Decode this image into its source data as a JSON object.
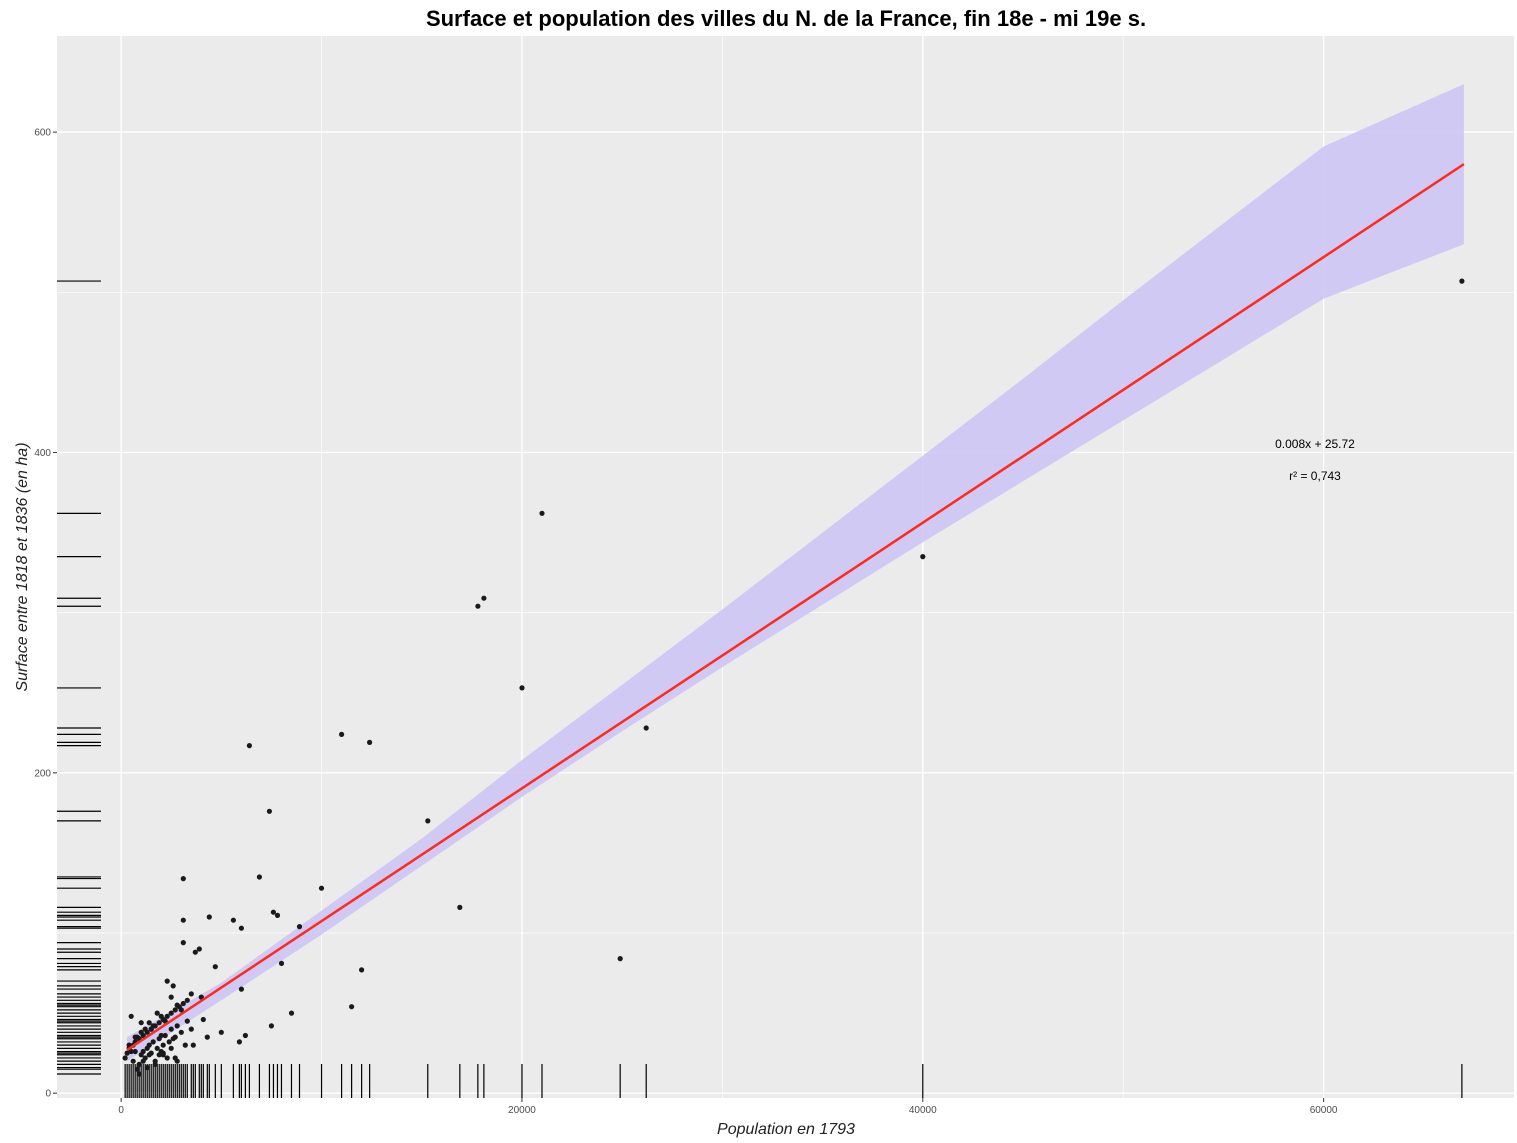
{
  "chart_data": {
    "type": "scatter",
    "title": "Surface et population des villes du N. de la France, fin 18e - mi 19e s.",
    "xlabel": "Population en 1793",
    "ylabel": "Surface entre 1818 et 1836 (en ha)",
    "xlim": [
      -3200,
      69500
    ],
    "ylim": [
      -3,
      660
    ],
    "x_ticks": [
      0,
      20000,
      40000,
      60000
    ],
    "x_tick_labels": [
      "0",
      "20000",
      "40000",
      "60000"
    ],
    "y_ticks": [
      0,
      200,
      400,
      600
    ],
    "y_tick_labels": [
      "0",
      "200",
      "400",
      "600"
    ],
    "grid": true,
    "background": "#ebebeb",
    "colors": {
      "points": "#1a1a1a",
      "fit_line": "#ff2a1a",
      "confidence_band": "#cdc5f5",
      "rug": "#000000",
      "grid": "#ffffff"
    },
    "regression": {
      "equation_label": "0.008x + 25.72",
      "r2_label": "r² = 0,743",
      "line": {
        "x": [
          300,
          67000
        ],
        "y": [
          27,
          580
        ]
      },
      "band_x": [
        300,
        5000,
        10000,
        15000,
        20000,
        25000,
        30000,
        35000,
        40000,
        45000,
        50000,
        55000,
        60000,
        67000
      ],
      "band_lower": [
        20,
        58,
        99,
        142,
        185,
        226,
        266,
        305,
        344,
        382,
        420,
        458,
        496,
        530
      ],
      "band_upper": [
        35,
        69,
        114,
        159,
        208,
        255,
        302,
        350,
        398,
        446,
        495,
        543,
        591,
        630
      ]
    },
    "series": [
      {
        "x": [
          66900,
          40000,
          21000,
          18100,
          17800,
          20000,
          26200,
          24900,
          16900,
          15300,
          6400,
          11000,
          12400,
          7400,
          10000,
          6900,
          3100,
          7800,
          7600,
          8900,
          4400,
          6000,
          5600,
          3100,
          3900,
          3700,
          4700,
          3100,
          12000,
          8000,
          6000,
          2300,
          4000,
          3500,
          2600,
          11500,
          8500,
          7500,
          5000,
          6200,
          5900,
          3300,
          4100,
          3000,
          2800,
          2500,
          2200,
          2000,
          1800,
          1600,
          1400,
          1200,
          1000,
          800,
          600,
          400,
          300,
          200,
          500,
          700,
          900,
          1100,
          1300,
          1500,
          1700,
          1900,
          2100,
          2300,
          2500,
          2700,
          2900,
          3100,
          3300,
          3500,
          600,
          900,
          1200,
          1500,
          1800,
          2100,
          2400,
          2700,
          3000,
          400,
          700,
          1000,
          1300,
          1600,
          1900,
          2200,
          2500,
          2800,
          800,
          1100,
          1400,
          1700,
          2000,
          2300,
          900,
          1300,
          1700,
          2100,
          2500,
          500,
          1000,
          1500,
          2000,
          2600,
          3200,
          700,
          1400,
          2100,
          2800,
          1100,
          1900,
          2700,
          3600,
          4300
        ],
        "y": [
          507,
          335,
          362,
          309,
          304,
          253,
          228,
          84,
          116,
          170,
          217,
          224,
          219,
          176,
          128,
          135,
          134,
          111,
          113,
          104,
          110,
          103,
          108,
          108,
          90,
          88,
          79,
          94,
          77,
          81,
          65,
          70,
          60,
          62,
          67,
          54,
          50,
          42,
          38,
          36,
          32,
          58,
          46,
          52,
          55,
          60,
          45,
          48,
          50,
          42,
          44,
          40,
          38,
          35,
          30,
          28,
          25,
          22,
          26,
          32,
          34,
          36,
          38,
          40,
          42,
          44,
          46,
          48,
          50,
          52,
          54,
          56,
          45,
          40,
          20,
          18,
          22,
          25,
          28,
          30,
          32,
          35,
          38,
          30,
          26,
          24,
          28,
          32,
          34,
          36,
          40,
          42,
          15,
          20,
          24,
          18,
          26,
          22,
          12,
          16,
          20,
          24,
          28,
          48,
          44,
          40,
          36,
          34,
          30,
          35,
          30,
          25,
          20,
          26,
          24,
          22,
          30,
          35
        ]
      }
    ],
    "rug_x": [
      66900,
      40000,
      26200,
      24900,
      21000,
      20000,
      18100,
      17800,
      16900,
      15300,
      12400,
      12000,
      11500,
      11000,
      10000,
      8900,
      8500,
      8000,
      7800,
      7600,
      7400,
      6900,
      6400,
      6200,
      6000,
      5900,
      5600,
      5000,
      4700,
      4400,
      4300,
      4100,
      4000,
      3900,
      3700,
      3600,
      3500,
      3300,
      3200,
      3100,
      3000,
      2900,
      2800,
      2700,
      2600,
      2500,
      2400,
      2300,
      2200,
      2100,
      2000,
      1900,
      1800,
      1700,
      1600,
      1500,
      1400,
      1300,
      1200,
      1100,
      1000,
      900,
      800,
      700,
      600,
      500,
      400,
      300,
      200
    ],
    "rug_y": [
      507,
      362,
      335,
      309,
      304,
      253,
      228,
      224,
      219,
      217,
      176,
      170,
      135,
      134,
      128,
      116,
      113,
      111,
      110,
      108,
      104,
      103,
      94,
      90,
      88,
      84,
      81,
      79,
      77,
      70,
      67,
      65,
      62,
      60,
      58,
      56,
      55,
      54,
      52,
      50,
      48,
      46,
      45,
      44,
      42,
      40,
      38,
      36,
      35,
      34,
      32,
      30,
      28,
      26,
      25,
      24,
      22,
      20,
      18,
      16,
      15,
      12
    ]
  }
}
